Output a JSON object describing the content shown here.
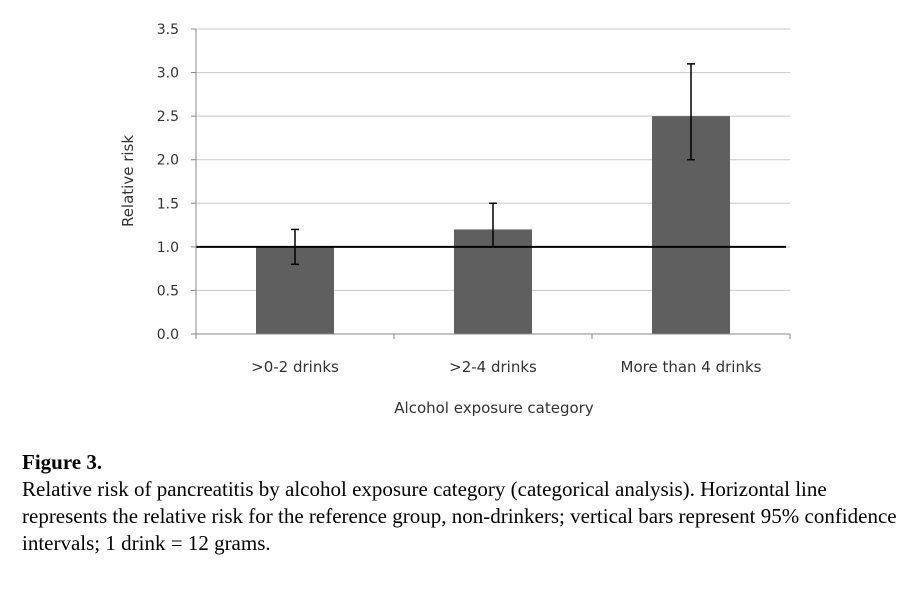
{
  "chart_data": {
    "type": "bar",
    "title": "",
    "xlabel": "Alcohol exposure category",
    "ylabel": "Relative risk",
    "categories": [
      ">0-2 drinks",
      ">2-4 drinks",
      "More than 4 drinks"
    ],
    "values": [
      1.0,
      1.2,
      2.5
    ],
    "error_low": [
      0.8,
      1.0,
      2.0
    ],
    "error_high": [
      1.2,
      1.5,
      3.1
    ],
    "reference_line": 1.0,
    "ylim": [
      0,
      3.5
    ],
    "yticks": [
      "0.0",
      "0.5",
      "1.0",
      "1.5",
      "2.0",
      "2.5",
      "3.0",
      "3.5"
    ],
    "ytick_values": [
      0,
      0.5,
      1.0,
      1.5,
      2.0,
      2.5,
      3.0,
      3.5
    ],
    "grid": true,
    "colors": {
      "bar": "#5f5f5f",
      "grid": "#c8c8c8",
      "axis": "#888888",
      "reference": "#000000",
      "error": "#000000"
    }
  },
  "caption": {
    "label": "Figure 3.",
    "text": "Relative risk of pancreatitis by alcohol exposure category (categorical analysis). Horizontal line represents the relative risk for the reference group, non-drinkers; vertical bars represent 95% confidence intervals; 1 drink = 12 grams."
  }
}
